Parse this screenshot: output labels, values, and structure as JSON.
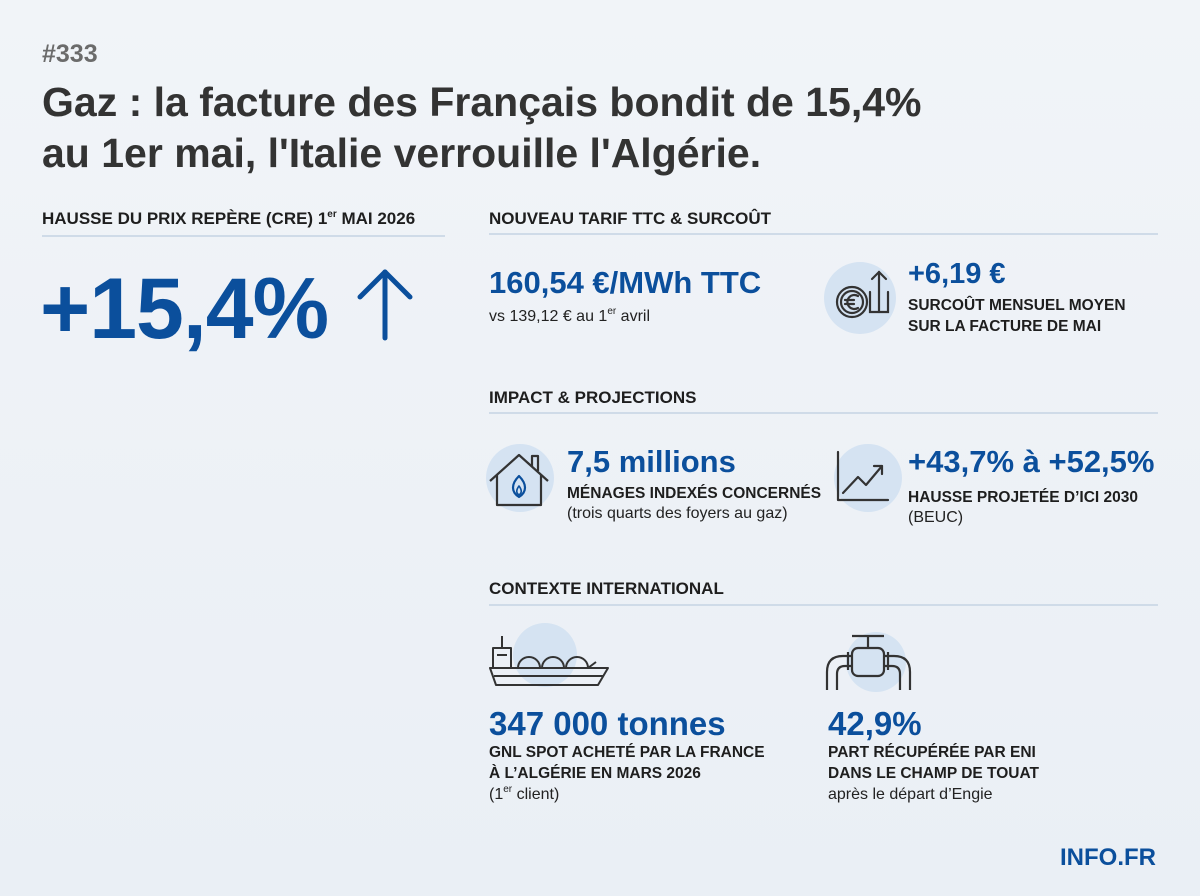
{
  "header": {
    "issue": "#333",
    "title": [
      "Gaz : la facture des Français bondit de 15,4%",
      "au 1er mai, l'Italie verrouille l'Algérie."
    ]
  },
  "hausse": {
    "heading": [
      "HAUSSE DU PRIX REPÈRE (CRE) 1",
      "er",
      " MAI 2026"
    ],
    "figure": "+15,4%"
  },
  "tarif": {
    "heading": "NOUVEAU TARIF TTC & SURCOÛT",
    "price": "160,54 €/MWh TTC",
    "comparison": [
      "vs 139,12 € au 1",
      "er",
      " avril"
    ],
    "surcharge": "+6,19 €",
    "surcharge_label": [
      "SURCOÛT MENSUEL MOYEN",
      "SUR LA FACTURE DE MAI"
    ]
  },
  "impact": {
    "heading": "IMPACT & PROJECTIONS",
    "households": {
      "value": "7,5 millions",
      "label": "MÉNAGES INDEXÉS CONCERNÉS",
      "note": "(trois quarts des foyers au gaz)"
    },
    "projection": {
      "value": "+43,7% à +52,5%",
      "label": "HAUSSE PROJETÉE D’ICI 2030",
      "note": "(BEUC)"
    }
  },
  "contexte": {
    "heading": "CONTEXTE INTERNATIONAL",
    "lng": {
      "value": "347 000 tonnes",
      "label": [
        "GNL SPOT ACHETÉ PAR LA FRANCE",
        "À L’ALGÉRIE EN MARS 2026"
      ],
      "note": [
        "(1",
        "er",
        " client)"
      ]
    },
    "eni": {
      "value": "42,9%",
      "label": [
        "PART RÉCUPÉRÉE PAR ENI",
        "DANS LE CHAMP DE TOUAT"
      ],
      "note": "après le départ d’Engie"
    }
  },
  "footer": {
    "brand": "INFO.FR"
  }
}
